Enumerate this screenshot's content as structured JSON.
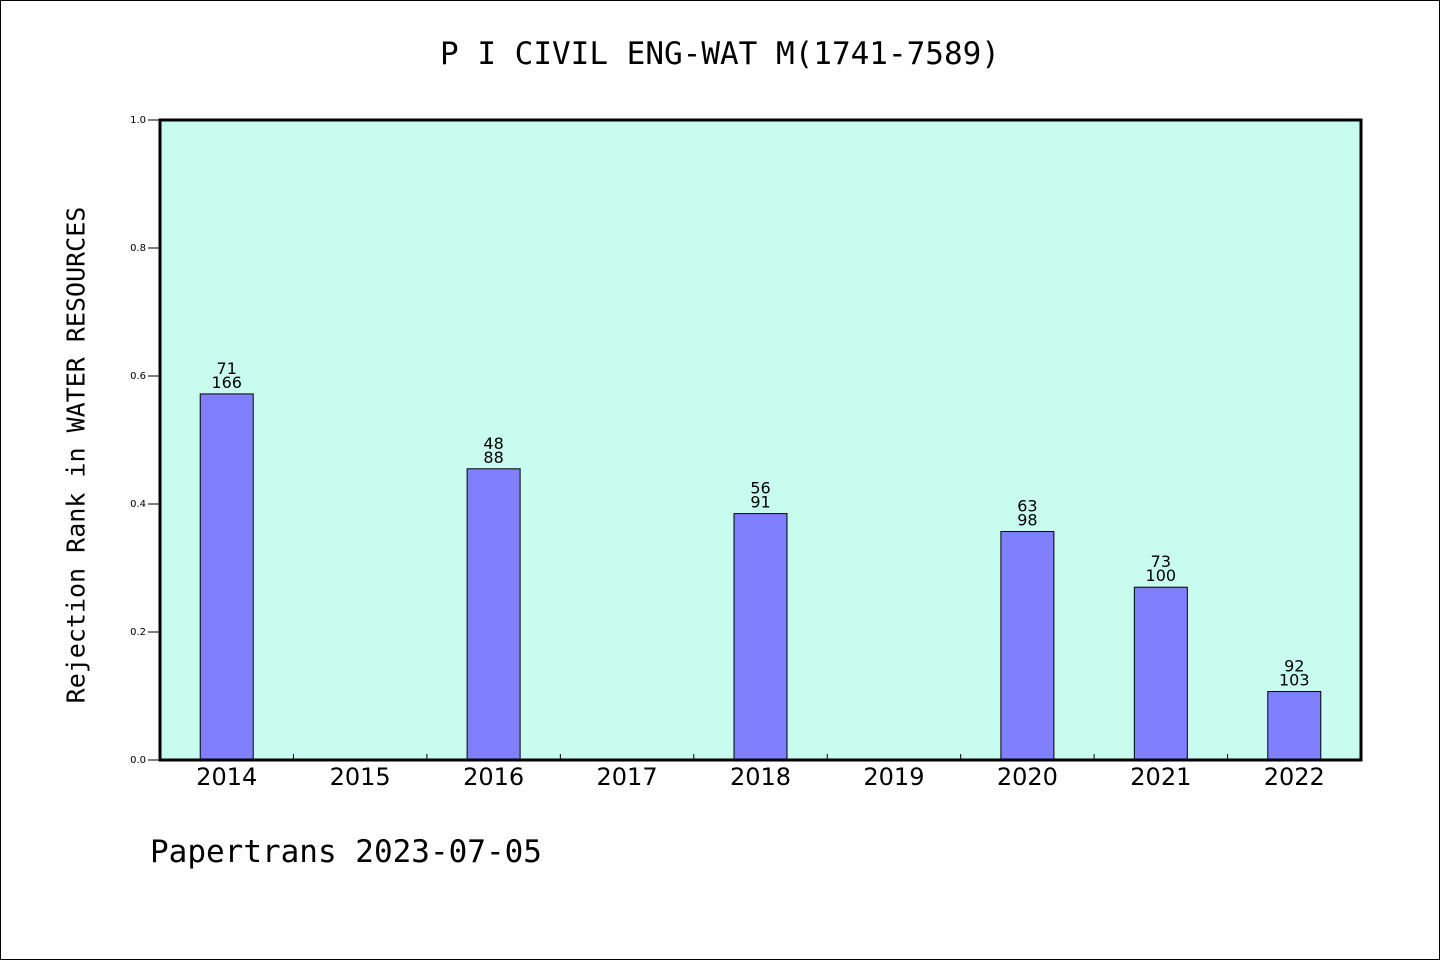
{
  "colors": {
    "plot_background": "#c8fcee",
    "bar_fill": "#8080ff",
    "bar_stroke": "#000000",
    "axis": "#000000"
  },
  "footer": {
    "text": "Papertrans 2023-07-05"
  },
  "chart_data": {
    "type": "bar",
    "title": "P I CIVIL ENG-WAT M(1741-7589)",
    "xlabel": "",
    "ylabel": "Rejection Rank in WATER RESOURCES",
    "ylim": [
      0,
      1.0
    ],
    "y_ticks": [
      0.0,
      0.2,
      0.4,
      0.6,
      0.8,
      1.0
    ],
    "y_tick_labels": [
      "0.0",
      "0.2",
      "0.4",
      "0.6",
      "0.8",
      "1.0"
    ],
    "grid": false,
    "legend": "none",
    "categories": [
      "2014",
      "2015",
      "2016",
      "2017",
      "2018",
      "2019",
      "2020",
      "2021",
      "2022"
    ],
    "values": [
      0.572,
      null,
      0.455,
      null,
      0.385,
      null,
      0.357,
      0.27,
      0.107
    ],
    "labels_top": [
      "71",
      null,
      "48",
      null,
      "56",
      null,
      "63",
      "73",
      "92"
    ],
    "labels_bottom": [
      "166",
      null,
      "88",
      null,
      "91",
      null,
      "98",
      "100",
      "103"
    ]
  }
}
